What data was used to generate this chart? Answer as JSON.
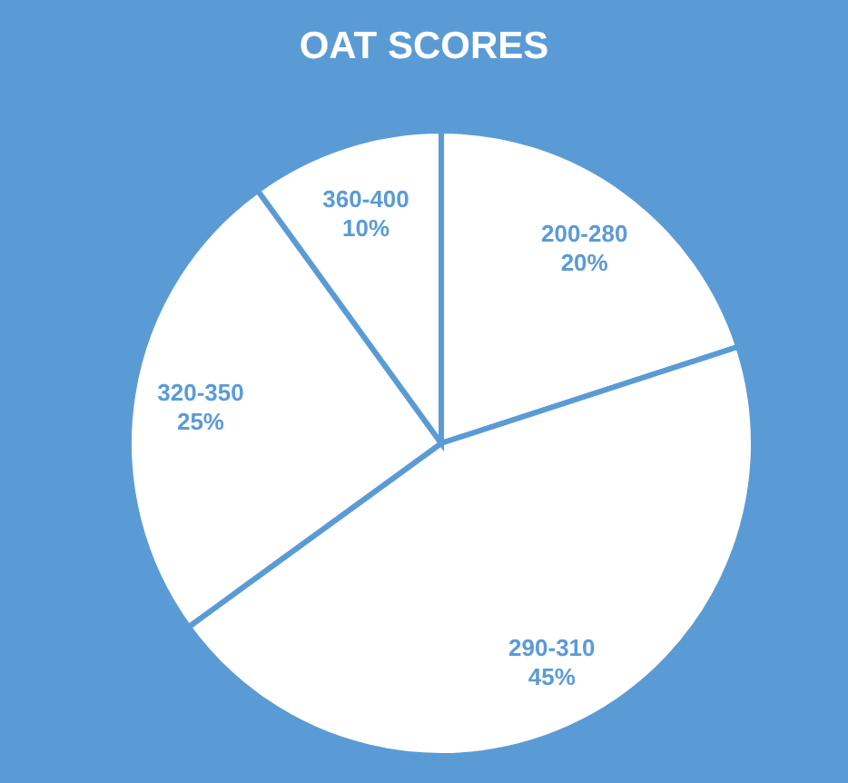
{
  "chart_data": {
    "type": "pie",
    "title": "OAT SCORES",
    "categories": [
      "200-280",
      "290-310",
      "320-350",
      "360-400"
    ],
    "values": [
      20,
      45,
      25,
      10
    ],
    "value_labels": [
      "20%",
      "45%",
      "25%",
      "10%"
    ],
    "colors": [
      "#ffffff",
      "#ffffff",
      "#ffffff",
      "#ffffff"
    ]
  }
}
